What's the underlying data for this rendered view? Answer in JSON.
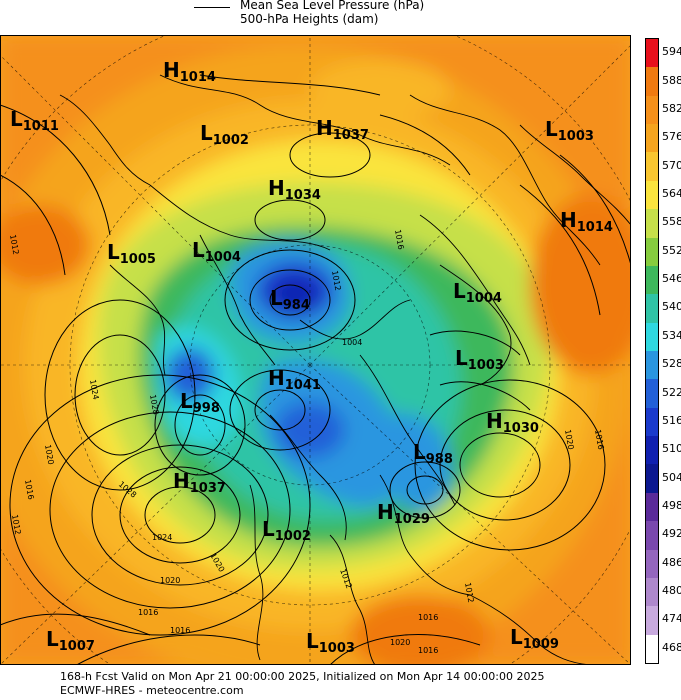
{
  "legend": {
    "line_label": "Mean Sea Level Pressure (hPa)",
    "fill_label": "500-hPa Heights (dam)"
  },
  "colorbar": {
    "ticks": [
      "594",
      "588",
      "582",
      "576",
      "570",
      "564",
      "558",
      "552",
      "546",
      "540",
      "534",
      "528",
      "522",
      "516",
      "510",
      "504",
      "498",
      "492",
      "486",
      "480",
      "474",
      "468"
    ],
    "colors": [
      "#e8101c",
      "#f07a10",
      "#f5901a",
      "#f5a41e",
      "#f9c630",
      "#fae43e",
      "#c6e04a",
      "#86cc3e",
      "#3db85c",
      "#2fc4a6",
      "#2ed8e0",
      "#2a96e0",
      "#2260d8",
      "#1a3acc",
      "#1020b0",
      "#0c1890",
      "#5a2a9a",
      "#7a48ae",
      "#9466be",
      "#ae88cc",
      "#c8aade",
      "#ffffff"
    ]
  },
  "pressure_centers": [
    {
      "type": "H",
      "value": "1014"
    },
    {
      "type": "L",
      "value": "1011"
    },
    {
      "type": "L",
      "value": "1002"
    },
    {
      "type": "H",
      "value": "1037"
    },
    {
      "type": "L",
      "value": "1003"
    },
    {
      "type": "H",
      "value": "1034"
    },
    {
      "type": "H",
      "value": "1014"
    },
    {
      "type": "L",
      "value": "1005"
    },
    {
      "type": "L",
      "value": "1004"
    },
    {
      "type": "L",
      "value": "984"
    },
    {
      "type": "L",
      "value": "1004"
    },
    {
      "type": "L",
      "value": "1003"
    },
    {
      "type": "H",
      "value": "1041"
    },
    {
      "type": "L",
      "value": "998"
    },
    {
      "type": "H",
      "value": "1030"
    },
    {
      "type": "L",
      "value": "988"
    },
    {
      "type": "H",
      "value": "1037"
    },
    {
      "type": "H",
      "value": "1029"
    },
    {
      "type": "L",
      "value": "1002"
    },
    {
      "type": "L",
      "value": "1007"
    },
    {
      "type": "L",
      "value": "1003"
    },
    {
      "type": "L",
      "value": "1009"
    }
  ],
  "contour_labels": [
    "1012",
    "1024",
    "1028",
    "1020",
    "1016",
    "1012",
    "1016",
    "1012",
    "1024",
    "1028",
    "1020",
    "1020",
    "1016",
    "1016",
    "1012",
    "1020",
    "1016",
    "1012",
    "1004",
    "1016",
    "1016",
    "1020",
    "1012"
  ],
  "footer": {
    "line1": "168-h Fcst Valid on Mon Apr 21 00:00:00 2025, Initialized on Mon Apr 14 00:00:00 2025",
    "line2": "ECMWF-HRES - meteocentre.com"
  }
}
